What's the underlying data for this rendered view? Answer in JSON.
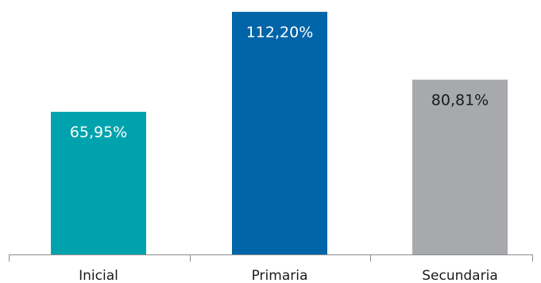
{
  "chart_data": {
    "type": "bar",
    "categories": [
      "Inicial",
      "Primaria",
      "Secundaria"
    ],
    "values": [
      65.95,
      112.2,
      80.81
    ],
    "value_labels": [
      "65,95%",
      "112,20%",
      "80,81%"
    ],
    "bar_colors": [
      "#00a3ad",
      "#0064a8",
      "#a7a9ac"
    ],
    "label_colors": [
      "#ffffff",
      "#ffffff",
      "#1a1a1a"
    ],
    "axis_color": "#8c8c8c",
    "grid": false,
    "legend": "none",
    "title": "",
    "xlabel": "",
    "ylabel": "",
    "ylim": [
      0,
      114
    ]
  }
}
